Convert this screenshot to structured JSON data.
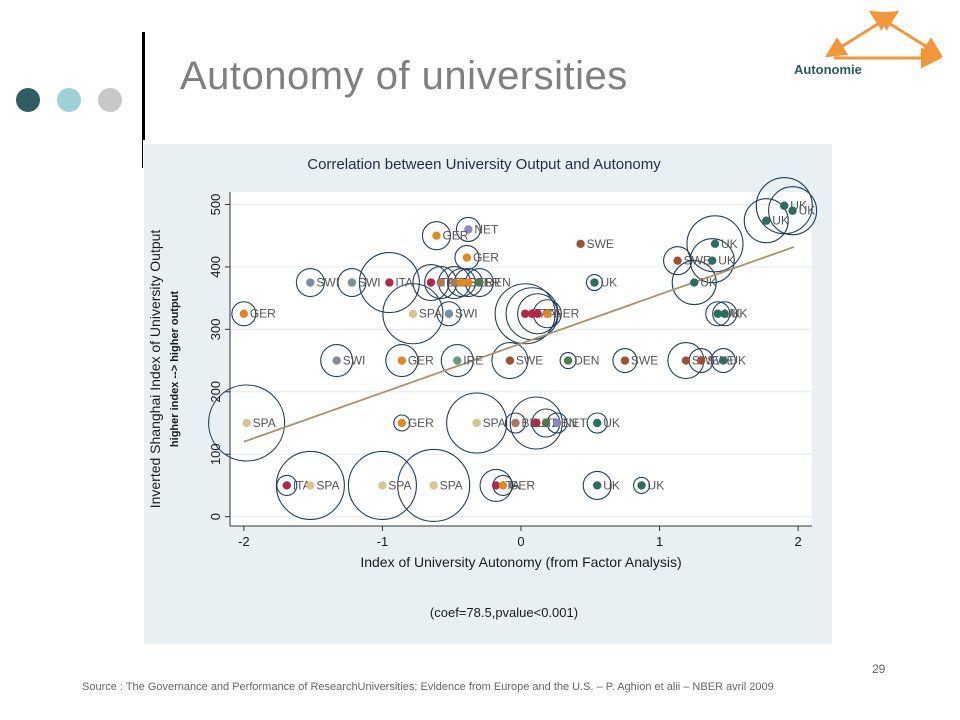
{
  "slide": {
    "title": "Autonomy of universities",
    "logo_text": "Autonomie",
    "page_number": "29",
    "source": "Source : The Governance and Performance of  ResearchUniversities: Evidence from Europe and the U.S. – P. Aghion et alii – NBER avril 2009",
    "dot_colors": [
      "#2e5e62",
      "#9fd0d6",
      "#c8c8c8"
    ],
    "logo_color": "#f2963a"
  },
  "colors": {
    "UK": "#2e6b60",
    "SWE": "#9c5234",
    "GER": "#e08a1e",
    "SPA": "#d4c690",
    "SWI": "#7a8e9c",
    "ITA": "#b3284a",
    "NET": "#8e86c0",
    "IRE": "#6f9582",
    "DEN": "#52784e",
    "BEL": "#a87858",
    "circle": "#1f3f5c",
    "fit": "#a89468"
  },
  "chart_data": {
    "type": "scatter",
    "title": "Correlation between University Output and Autonomy",
    "xlabel": "Index of University Autonomy (from Factor Analysis)",
    "ylabel": "Inverted Shanghai Index of University Output",
    "ylabel2": "higher index --> higher output",
    "note": "(coef=78.5,pvalue<0.001)",
    "xlim": [
      -2.1,
      2.1
    ],
    "ylim": [
      -15,
      520
    ],
    "xticks": [
      "-2",
      "-1",
      "0",
      "1",
      "2"
    ],
    "yticks": [
      "0",
      "100",
      "200",
      "300",
      "400",
      "500"
    ],
    "fit": {
      "x": [
        -2,
        1.97
      ],
      "y": [
        120,
        432
      ]
    },
    "points": [
      {
        "x": 1.9,
        "y": 498,
        "label": "UK",
        "size": 28
      },
      {
        "x": 1.96,
        "y": 490,
        "label": "UK",
        "size": 24
      },
      {
        "x": 1.77,
        "y": 474,
        "label": "UK",
        "size": 22
      },
      {
        "x": 1.4,
        "y": 437,
        "label": "UK",
        "size": 28
      },
      {
        "x": 1.38,
        "y": 410,
        "label": "UK",
        "size": 22
      },
      {
        "x": 1.13,
        "y": 410,
        "label": "SWE",
        "size": 14
      },
      {
        "x": 1.25,
        "y": 375,
        "label": "UK",
        "size": 22
      },
      {
        "x": 0.43,
        "y": 437,
        "label": "SWE",
        "size": 0
      },
      {
        "x": 0.53,
        "y": 375,
        "label": "UK",
        "size": 8
      },
      {
        "x": 1.42,
        "y": 325,
        "label": "UK",
        "size": 12
      },
      {
        "x": 1.47,
        "y": 325,
        "label": "UK",
        "size": 12
      },
      {
        "x": -2.0,
        "y": 325,
        "label": "GER",
        "size": 12
      },
      {
        "x": -0.38,
        "y": 460,
        "label": "NET",
        "size": 12
      },
      {
        "x": -0.61,
        "y": 450,
        "label": "GER",
        "size": 14
      },
      {
        "x": -0.39,
        "y": 415,
        "label": "GER",
        "size": 12
      },
      {
        "x": -1.52,
        "y": 375,
        "label": "SWI",
        "size": 14
      },
      {
        "x": -1.22,
        "y": 375,
        "label": "SWI",
        "size": 14
      },
      {
        "x": -0.95,
        "y": 375,
        "label": "ITA",
        "size": 30
      },
      {
        "x": -0.65,
        "y": 375,
        "label": "ITA",
        "size": 18
      },
      {
        "x": -0.58,
        "y": 375,
        "label": "BEL",
        "size": 16
      },
      {
        "x": -0.48,
        "y": 375,
        "label": "BEL",
        "size": 16
      },
      {
        "x": -0.43,
        "y": 375,
        "label": "GER",
        "size": 14
      },
      {
        "x": -0.38,
        "y": 375,
        "label": "GER",
        "size": 14
      },
      {
        "x": -0.3,
        "y": 375,
        "label": "DEN",
        "size": 14
      },
      {
        "x": -0.78,
        "y": 325,
        "label": "SPA",
        "size": 30
      },
      {
        "x": -0.52,
        "y": 325,
        "label": "SWI",
        "size": 12
      },
      {
        "x": 0.03,
        "y": 325,
        "label": "ITA",
        "size": 30
      },
      {
        "x": 0.08,
        "y": 325,
        "label": "ITA",
        "size": 26
      },
      {
        "x": 0.12,
        "y": 325,
        "label": "ITA",
        "size": 20
      },
      {
        "x": 0.19,
        "y": 325,
        "label": "GER",
        "size": 14
      },
      {
        "x": -1.33,
        "y": 250,
        "label": "SWI",
        "size": 16
      },
      {
        "x": -0.86,
        "y": 250,
        "label": "GER",
        "size": 16
      },
      {
        "x": -0.46,
        "y": 250,
        "label": "IRE",
        "size": 16
      },
      {
        "x": -0.08,
        "y": 250,
        "label": "SWE",
        "size": 18
      },
      {
        "x": 0.34,
        "y": 250,
        "label": "DEN",
        "size": 8
      },
      {
        "x": 0.75,
        "y": 250,
        "label": "SWE",
        "size": 12
      },
      {
        "x": 1.19,
        "y": 250,
        "label": "SWE",
        "size": 18
      },
      {
        "x": 1.3,
        "y": 250,
        "label": "SWE",
        "size": 12
      },
      {
        "x": 1.46,
        "y": 250,
        "label": "UK",
        "size": 12
      },
      {
        "x": -1.98,
        "y": 150,
        "label": "SPA",
        "size": 38
      },
      {
        "x": -0.86,
        "y": 150,
        "label": "GER",
        "size": 8
      },
      {
        "x": -0.32,
        "y": 150,
        "label": "SPA",
        "size": 30
      },
      {
        "x": -0.04,
        "y": 150,
        "label": "BEL",
        "size": 10
      },
      {
        "x": 0.11,
        "y": 150,
        "label": "ITA",
        "size": 26
      },
      {
        "x": 0.18,
        "y": 150,
        "label": "DEN",
        "size": 14
      },
      {
        "x": 0.26,
        "y": 150,
        "label": "NET",
        "size": 10
      },
      {
        "x": 0.55,
        "y": 150,
        "label": "UK",
        "size": 10
      },
      {
        "x": -1.69,
        "y": 50,
        "label": "ITA",
        "size": 10
      },
      {
        "x": -1.52,
        "y": 50,
        "label": "SPA",
        "size": 34
      },
      {
        "x": -1.0,
        "y": 50,
        "label": "SPA",
        "size": 34
      },
      {
        "x": -0.63,
        "y": 50,
        "label": "SPA",
        "size": 36
      },
      {
        "x": -0.18,
        "y": 50,
        "label": "ITA",
        "size": 16
      },
      {
        "x": -0.13,
        "y": 50,
        "label": "GER",
        "size": 10
      },
      {
        "x": 0.55,
        "y": 50,
        "label": "UK",
        "size": 14
      },
      {
        "x": 0.87,
        "y": 50,
        "label": "UK",
        "size": 8
      }
    ]
  }
}
